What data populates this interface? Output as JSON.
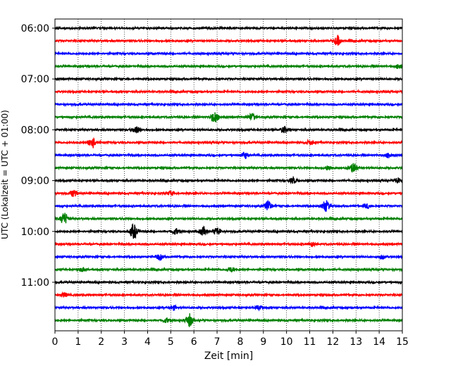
{
  "chart_data": {
    "type": "line",
    "title": "",
    "xlabel": "Zeit  [min]",
    "ylabel": "UTC (Lokalzeit = UTC + 01:00)",
    "xlim": [
      0,
      15
    ],
    "x_ticks": [
      "0",
      "1",
      "2",
      "3",
      "4",
      "5",
      "6",
      "7",
      "8",
      "9",
      "10",
      "11",
      "12",
      "13",
      "14",
      "15"
    ],
    "y_tick_labels": [
      "06:00",
      "07:00",
      "08:00",
      "09:00",
      "10:00",
      "11:00"
    ],
    "y_tick_rows": [
      0,
      4,
      8,
      12,
      16,
      20
    ],
    "grid": "vertical-dotted",
    "trace_colors": [
      "#000000",
      "#ff0000",
      "#0000ff",
      "#008000"
    ],
    "rows": [
      {
        "start": "06:00",
        "color": "#000000",
        "events": []
      },
      {
        "start": "06:15",
        "color": "#ff0000",
        "events": [
          {
            "t": 12.2,
            "amp": 2.0
          }
        ]
      },
      {
        "start": "06:30",
        "color": "#0000ff",
        "events": []
      },
      {
        "start": "06:45",
        "color": "#008000",
        "events": [
          {
            "t": 14.9,
            "amp": 1.3
          }
        ]
      },
      {
        "start": "07:00",
        "color": "#000000",
        "events": []
      },
      {
        "start": "07:15",
        "color": "#ff0000",
        "events": []
      },
      {
        "start": "07:30",
        "color": "#0000ff",
        "events": []
      },
      {
        "start": "07:45",
        "color": "#008000",
        "events": [
          {
            "t": 6.9,
            "amp": 2.6
          },
          {
            "t": 8.5,
            "amp": 1.3
          }
        ]
      },
      {
        "start": "08:00",
        "color": "#000000",
        "events": [
          {
            "t": 3.5,
            "amp": 1.6
          },
          {
            "t": 9.9,
            "amp": 1.3
          }
        ]
      },
      {
        "start": "08:15",
        "color": "#ff0000",
        "events": [
          {
            "t": 1.6,
            "amp": 2.6
          },
          {
            "t": 11.0,
            "amp": 0.9
          }
        ]
      },
      {
        "start": "08:30",
        "color": "#0000ff",
        "events": [
          {
            "t": 8.2,
            "amp": 1.4
          },
          {
            "t": 14.4,
            "amp": 1.0
          }
        ]
      },
      {
        "start": "08:45",
        "color": "#008000",
        "events": [
          {
            "t": 12.9,
            "amp": 2.0
          },
          {
            "t": 11.8,
            "amp": 0.9
          }
        ]
      },
      {
        "start": "09:00",
        "color": "#000000",
        "events": [
          {
            "t": 10.3,
            "amp": 1.2
          },
          {
            "t": 14.8,
            "amp": 1.2
          }
        ]
      },
      {
        "start": "09:15",
        "color": "#ff0000",
        "events": [
          {
            "t": 0.8,
            "amp": 1.5
          },
          {
            "t": 5.0,
            "amp": 0.9
          }
        ]
      },
      {
        "start": "09:30",
        "color": "#0000ff",
        "events": [
          {
            "t": 9.2,
            "amp": 2.1
          },
          {
            "t": 11.7,
            "amp": 2.4
          },
          {
            "t": 13.5,
            "amp": 1.0
          }
        ]
      },
      {
        "start": "09:45",
        "color": "#008000",
        "events": [
          {
            "t": 0.4,
            "amp": 2.6
          }
        ]
      },
      {
        "start": "10:00",
        "color": "#000000",
        "events": [
          {
            "t": 3.4,
            "amp": 3.0
          },
          {
            "t": 5.2,
            "amp": 1.3
          },
          {
            "t": 6.4,
            "amp": 1.8
          },
          {
            "t": 7.0,
            "amp": 1.8
          }
        ]
      },
      {
        "start": "10:15",
        "color": "#ff0000",
        "events": [
          {
            "t": 11.1,
            "amp": 0.8
          }
        ]
      },
      {
        "start": "10:30",
        "color": "#0000ff",
        "events": [
          {
            "t": 4.5,
            "amp": 1.2
          },
          {
            "t": 14.1,
            "amp": 0.9
          }
        ]
      },
      {
        "start": "10:45",
        "color": "#008000",
        "events": [
          {
            "t": 1.2,
            "amp": 0.9
          },
          {
            "t": 7.6,
            "amp": 1.0
          }
        ]
      },
      {
        "start": "11:00",
        "color": "#000000",
        "events": []
      },
      {
        "start": "11:15",
        "color": "#ff0000",
        "events": [
          {
            "t": 0.4,
            "amp": 0.9
          }
        ]
      },
      {
        "start": "11:30",
        "color": "#0000ff",
        "events": [
          {
            "t": 5.1,
            "amp": 0.9
          },
          {
            "t": 8.8,
            "amp": 1.0
          }
        ]
      },
      {
        "start": "11:45",
        "color": "#008000",
        "events": [
          {
            "t": 5.8,
            "amp": 2.8
          },
          {
            "t": 4.8,
            "amp": 1.0
          }
        ]
      }
    ]
  }
}
